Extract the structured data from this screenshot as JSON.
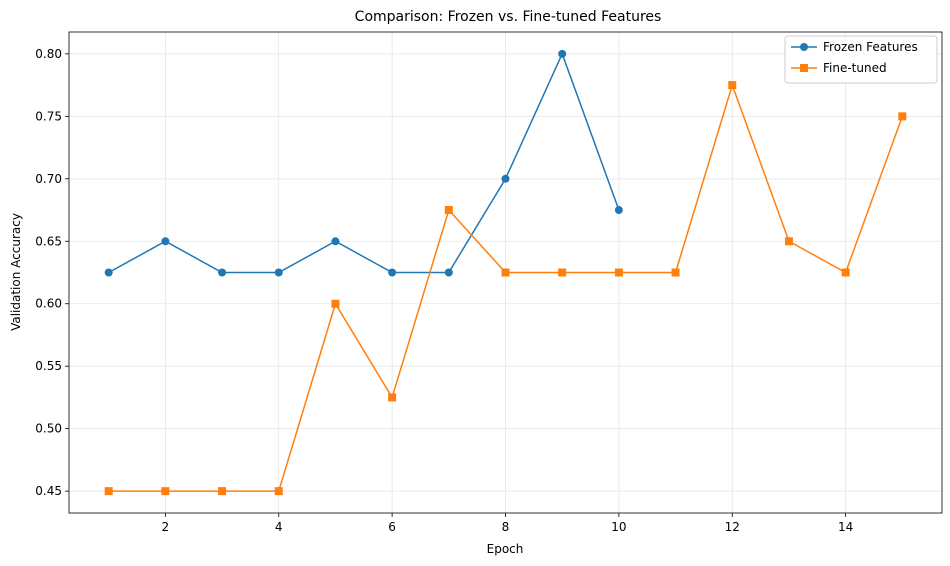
{
  "chart_data": {
    "type": "line",
    "title": "Comparison: Frozen vs. Fine-tuned Features",
    "xlabel": "Epoch",
    "ylabel": "Validation Accuracy",
    "xlim": [
      0.3,
      15.7
    ],
    "ylim": [
      0.4325,
      0.8175
    ],
    "xticks": [
      2,
      4,
      6,
      8,
      10,
      12,
      14
    ],
    "yticks": [
      0.45,
      0.5,
      0.55,
      0.6,
      0.65,
      0.7,
      0.75,
      0.8
    ],
    "ytick_labels": [
      "0.45",
      "0.50",
      "0.55",
      "0.60",
      "0.65",
      "0.70",
      "0.75",
      "0.80"
    ],
    "grid": true,
    "legend_position": "top-right",
    "series": [
      {
        "name": "Frozen Features",
        "color": "#1f77b4",
        "marker": "circle",
        "x": [
          1,
          2,
          3,
          4,
          5,
          6,
          7,
          8,
          9,
          10
        ],
        "values": [
          0.625,
          0.65,
          0.625,
          0.625,
          0.65,
          0.625,
          0.625,
          0.7,
          0.8,
          0.675
        ]
      },
      {
        "name": "Fine-tuned",
        "color": "#ff7f0e",
        "marker": "square",
        "x": [
          1,
          2,
          3,
          4,
          5,
          6,
          7,
          8,
          9,
          10,
          11,
          12,
          13,
          14,
          15
        ],
        "values": [
          0.45,
          0.45,
          0.45,
          0.45,
          0.6,
          0.525,
          0.675,
          0.625,
          0.625,
          0.625,
          0.625,
          0.775,
          0.65,
          0.625,
          0.75
        ]
      }
    ]
  }
}
